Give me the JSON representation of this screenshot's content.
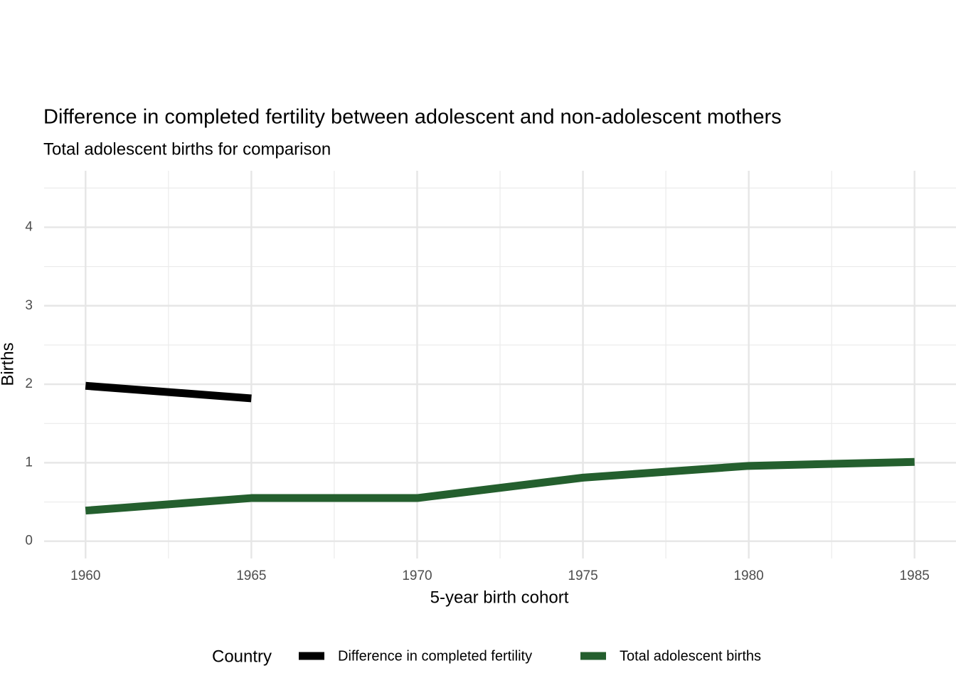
{
  "chart_data": {
    "type": "line",
    "title": "Difference in completed fertility between adolescent and non-adolescent mothers",
    "subtitle": "Total adolescent births for comparison",
    "x_label": "5-year birth cohort",
    "y_label": "Births",
    "legend_title": "Country",
    "x": [
      1960,
      1965,
      1970,
      1975,
      1980,
      1985
    ],
    "series": [
      {
        "name": "Difference in completed fertility",
        "color": "#000000",
        "values": [
          1.98,
          1.82,
          null,
          null,
          null,
          null
        ]
      },
      {
        "name": "Total adolescent births",
        "color": "#245f2e",
        "values": [
          0.39,
          0.55,
          0.55,
          0.81,
          0.96,
          1.01
        ]
      }
    ],
    "xlim": [
      1958.75,
      1986.25
    ],
    "xticks": [
      1960,
      1965,
      1970,
      1975,
      1980,
      1985
    ],
    "ylim": [
      -0.22,
      4.72
    ],
    "yticks": [
      0,
      1,
      2,
      3,
      4
    ],
    "grid": true,
    "legend_position": "bottom"
  }
}
